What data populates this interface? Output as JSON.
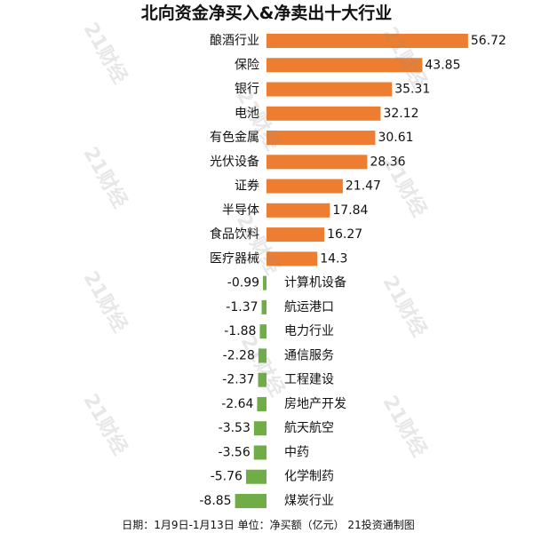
{
  "footer": "日期：1月9日-1月13日 单位：净买额（亿元） 21投资通制图",
  "watermark": "21财经",
  "chart_data": {
    "type": "bar",
    "orientation": "horizontal",
    "title": "北向资金净买入&净卖出十大行业",
    "categories": [
      "酿酒行业",
      "保险",
      "银行",
      "电池",
      "有色金属",
      "光伏设备",
      "证券",
      "半导体",
      "食品饮料",
      "医疗器械",
      "计算机设备",
      "航运港口",
      "电力行业",
      "通信服务",
      "工程建设",
      "房地产开发",
      "航天航空",
      "中药",
      "化学制药",
      "煤炭行业"
    ],
    "values": [
      56.72,
      43.85,
      35.31,
      32.12,
      30.61,
      28.36,
      21.47,
      17.84,
      16.27,
      14.3,
      -0.99,
      -1.37,
      -1.88,
      -2.28,
      -2.37,
      -2.64,
      -3.53,
      -3.56,
      -5.76,
      -8.85
    ],
    "grid": false,
    "colors": {
      "positive": "#ED7D31",
      "negative": "#70AD47"
    }
  }
}
